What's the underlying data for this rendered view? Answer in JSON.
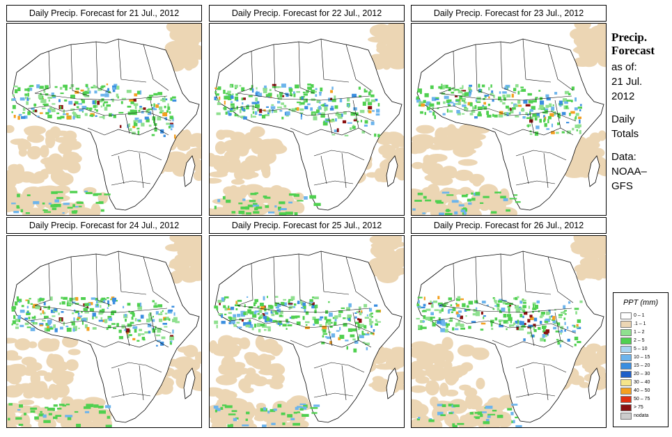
{
  "panels": [
    {
      "title": "Daily Precip. Forecast for  21 Jul., 2012"
    },
    {
      "title": "Daily Precip. Forecast for  22 Jul., 2012"
    },
    {
      "title": "Daily Precip. Forecast for  23 Jul., 2012"
    },
    {
      "title": "Daily Precip. Forecast for  24 Jul., 2012"
    },
    {
      "title": "Daily Precip. Forecast for  25 Jul., 2012"
    },
    {
      "title": "Daily Precip. Forecast for  26 Jul., 2012"
    }
  ],
  "side": {
    "title_line1": "Precip.",
    "title_line2": "Forecast",
    "asof_line1": "as of:",
    "asof_line2": "21 Jul.",
    "asof_line3": "2012",
    "totals_line1": "Daily",
    "totals_line2": "Totals",
    "data_line1": "Data:",
    "data_line2": "NOAA–",
    "data_line3": "GFS"
  },
  "legend": {
    "title": "PPT (mm)",
    "items": [
      {
        "label": "0 – 1",
        "color": "#ffffff"
      },
      {
        "label": ".1 – 1",
        "color": "#ecd6b4"
      },
      {
        "label": "1 – 2",
        "color": "#8fe08f"
      },
      {
        "label": "2 – 5",
        "color": "#4fd04f"
      },
      {
        "label": "5 – 10",
        "color": "#a8d4f0"
      },
      {
        "label": "10 – 15",
        "color": "#6cb4ec"
      },
      {
        "label": "15 – 20",
        "color": "#3a8ee0"
      },
      {
        "label": "20 – 30",
        "color": "#1f5fc8"
      },
      {
        "label": "30 – 40",
        "color": "#f6e58a"
      },
      {
        "label": "40 – 50",
        "color": "#f4a020"
      },
      {
        "label": "50 – 75",
        "color": "#e03010"
      },
      {
        "label": "> 75",
        "color": "#8a1010"
      },
      {
        "label": "nodata",
        "color": "#cccccc"
      }
    ]
  }
}
